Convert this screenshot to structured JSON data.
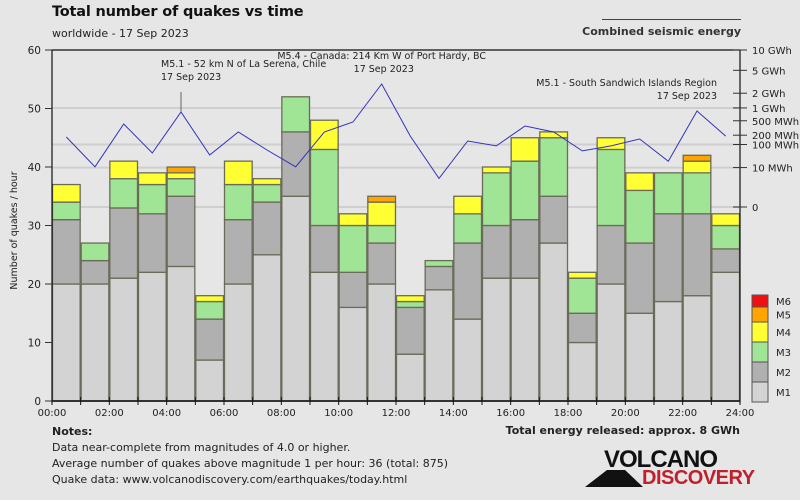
{
  "header": {
    "title": "Total number of quakes vs time",
    "subtitle": "worldwide - 17 Sep 2023",
    "energy_legend": "Combined seismic energy"
  },
  "colors": {
    "M1": "#d3d3d3",
    "M2": "#b0b0b0",
    "M3": "#a0e495",
    "M4": "#ffff33",
    "M5": "#ffa500",
    "M6": "#ee1111",
    "energy_line": "#3333bb",
    "background": "#e6e6e6"
  },
  "chart_data": {
    "type": "bar",
    "stacked": true,
    "title": "Total number of quakes vs time",
    "subtitle": "worldwide - 17 Sep 2023",
    "xlabel": "",
    "ylabel": "Number of quakes / hour",
    "ylim": [
      0,
      60
    ],
    "yticks": [
      0,
      10,
      20,
      30,
      40,
      50,
      60
    ],
    "xtick_labels": [
      "00:00",
      "02:00",
      "04:00",
      "06:00",
      "08:00",
      "10:00",
      "12:00",
      "14:00",
      "16:00",
      "18:00",
      "20:00",
      "22:00",
      "24:00"
    ],
    "categories": [
      "00",
      "01",
      "02",
      "03",
      "04",
      "05",
      "06",
      "07",
      "08",
      "09",
      "10",
      "11",
      "12",
      "13",
      "14",
      "15",
      "16",
      "17",
      "18",
      "19",
      "20",
      "21",
      "22",
      "23"
    ],
    "series": [
      {
        "name": "M1",
        "values": [
          20,
          20,
          21,
          22,
          23,
          7,
          20,
          25,
          35,
          22,
          16,
          20,
          8,
          19,
          14,
          21,
          21,
          27,
          10,
          20,
          15,
          17,
          18,
          22
        ]
      },
      {
        "name": "M2",
        "values": [
          11,
          4,
          12,
          10,
          12,
          7,
          11,
          9,
          11,
          8,
          6,
          7,
          8,
          4,
          13,
          9,
          10,
          8,
          5,
          10,
          12,
          15,
          14,
          4
        ]
      },
      {
        "name": "M3",
        "values": [
          3,
          3,
          5,
          5,
          3,
          3,
          6,
          3,
          6,
          13,
          8,
          3,
          1,
          1,
          5,
          9,
          10,
          10,
          6,
          13,
          9,
          7,
          7,
          4
        ]
      },
      {
        "name": "M4",
        "values": [
          3,
          0,
          3,
          2,
          1,
          1,
          4,
          1,
          0,
          5,
          2,
          4,
          1,
          0,
          3,
          1,
          4,
          1,
          1,
          2,
          3,
          0,
          2,
          2
        ]
      },
      {
        "name": "M5",
        "values": [
          0,
          0,
          0,
          0,
          1,
          0,
          0,
          0,
          0,
          0,
          0,
          1,
          0,
          0,
          0,
          0,
          0,
          0,
          0,
          0,
          0,
          0,
          1,
          0
        ]
      },
      {
        "name": "M6",
        "values": [
          0,
          0,
          0,
          0,
          0,
          0,
          0,
          0,
          0,
          0,
          0,
          0,
          0,
          0,
          0,
          0,
          0,
          0,
          0,
          0,
          0,
          0,
          0,
          0
        ]
      }
    ],
    "legend": [
      "M6",
      "M5",
      "M4",
      "M3",
      "M2",
      "M1"
    ],
    "legend_placement": "right-bottom",
    "energy": {
      "name": "Combined seismic energy",
      "unit": "MWh",
      "scale": "power-0.2",
      "max_mwh": 10000,
      "values_mwh": [
        176,
        11,
        413,
        48,
        813,
        40,
        249,
        63,
        11,
        249,
        465,
        2950,
        188,
        2,
        131,
        89,
        366,
        249,
        58,
        89,
        152,
        21,
        855,
        188
      ],
      "ticks": [
        {
          "label": "10 GWh",
          "mwh": 10000
        },
        {
          "label": "5 GWh",
          "mwh": 5000
        },
        {
          "label": "2 GWh",
          "mwh": 2000
        },
        {
          "label": "1 GWh",
          "mwh": 1000
        },
        {
          "label": "500 MWh",
          "mwh": 500
        },
        {
          "label": "200 MWh",
          "mwh": 200
        },
        {
          "label": "100 MWh",
          "mwh": 100
        },
        {
          "label": "10 MWh",
          "mwh": 10
        },
        {
          "label": "0",
          "mwh": 0
        }
      ],
      "gridlines_mwh": [
        1000,
        100,
        10,
        0
      ]
    },
    "annotations": [
      {
        "hour": 4,
        "line1": "M5.1 - 52 km N of La Serena, Chile",
        "line2": "17 Sep 2023",
        "align": "left"
      },
      {
        "hour": 11,
        "line1": "M5.4 - Canada: 214 Km W of Port Hardy, BC",
        "line2": "17 Sep 2023",
        "align": "center"
      },
      {
        "hour": 22,
        "line1": "M5.1 - South Sandwich Islands Region",
        "line2": "17 Sep 2023",
        "align": "right"
      }
    ]
  },
  "notes": {
    "heading": "Notes:",
    "lines": [
      "Data near-complete from magnitudes of 4.0 or higher.",
      "Average number of quakes above magnitude 1 per hour: 36 (total: 875)",
      "Quake data: www.volcanodiscovery.com/earthquakes/today.html"
    ]
  },
  "total_energy": "Total energy released: approx. 8 GWh",
  "logo": {
    "word1": "VOLCANO",
    "word2": "DISCOVERY"
  }
}
